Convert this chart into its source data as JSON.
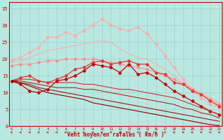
{
  "background_color": "#b8e8e0",
  "grid_color": "#99cccc",
  "xlabel": "Vent moyen/en rafales ( km/h )",
  "xlabel_color": "#cc0000",
  "tick_color": "#cc0000",
  "x_ticks": [
    0,
    1,
    2,
    3,
    4,
    5,
    6,
    7,
    8,
    9,
    10,
    11,
    12,
    13,
    14,
    15,
    16,
    17,
    18,
    19,
    20,
    21,
    22,
    23
  ],
  "ylim": [
    0,
    37
  ],
  "xlim": [
    -0.3,
    23.3
  ],
  "yticks": [
    0,
    5,
    10,
    15,
    20,
    25,
    30,
    35
  ],
  "series": [
    {
      "x": [
        0,
        1,
        2,
        3,
        4,
        5,
        6,
        7,
        8,
        9,
        10,
        11,
        12,
        13,
        14,
        15,
        16,
        17,
        18,
        19,
        20,
        21,
        22,
        23
      ],
      "y": [
        19.5,
        20.5,
        22.0,
        23.5,
        26.5,
        26.5,
        28.0,
        27.0,
        28.5,
        30.0,
        32.0,
        30.0,
        29.0,
        28.5,
        29.5,
        27.5,
        24.5,
        21.0,
        17.5,
        14.0,
        10.5,
        8.5,
        6.5,
        5.5
      ],
      "color": "#ffaaaa",
      "linewidth": 0.8,
      "marker": "D",
      "markersize": 2.0,
      "linestyle": "-"
    },
    {
      "x": [
        0,
        1,
        2,
        3,
        4,
        5,
        6,
        7,
        8,
        9,
        10,
        11,
        12,
        13,
        14,
        15,
        16,
        17,
        18,
        19,
        20,
        21,
        22,
        23
      ],
      "y": [
        19.0,
        19.5,
        20.5,
        21.5,
        22.5,
        23.0,
        23.5,
        24.0,
        24.5,
        25.0,
        25.5,
        25.0,
        23.0,
        21.5,
        20.5,
        20.0,
        18.5,
        17.0,
        15.0,
        13.0,
        11.5,
        10.0,
        8.5,
        7.0
      ],
      "color": "#ffaaaa",
      "linewidth": 0.7,
      "marker": null,
      "markersize": 0,
      "linestyle": "-"
    },
    {
      "x": [
        0,
        1,
        2,
        3,
        4,
        5,
        6,
        7,
        8,
        9,
        10,
        11,
        12,
        13,
        14,
        15,
        16,
        17,
        18,
        19,
        20,
        21,
        22,
        23
      ],
      "y": [
        18.0,
        18.5,
        18.5,
        19.0,
        19.5,
        19.5,
        20.0,
        20.0,
        20.0,
        20.0,
        19.5,
        19.0,
        18.5,
        18.0,
        17.5,
        17.0,
        16.0,
        15.0,
        14.0,
        12.5,
        11.0,
        9.5,
        8.0,
        6.5
      ],
      "color": "#ff8888",
      "linewidth": 0.7,
      "marker": "D",
      "markersize": 1.8,
      "linestyle": "-"
    },
    {
      "x": [
        0,
        1,
        2,
        3,
        4,
        5,
        6,
        7,
        8,
        9,
        10,
        11,
        12,
        13,
        14,
        15,
        16,
        17,
        18,
        19,
        20,
        21,
        22,
        23
      ],
      "y": [
        13.5,
        14.5,
        15.0,
        13.5,
        13.0,
        14.0,
        15.0,
        17.0,
        17.5,
        19.0,
        19.5,
        18.5,
        19.0,
        19.5,
        18.5,
        18.5,
        16.0,
        15.5,
        13.0,
        12.5,
        10.5,
        9.5,
        7.5,
        6.0
      ],
      "color": "#ee3333",
      "linewidth": 0.9,
      "marker": "D",
      "markersize": 2.0,
      "linestyle": "-"
    },
    {
      "x": [
        0,
        1,
        2,
        3,
        4,
        5,
        6,
        7,
        8,
        9,
        10,
        11,
        12,
        13,
        14,
        15,
        16,
        17,
        18,
        19,
        20,
        21,
        22,
        23
      ],
      "y": [
        13.5,
        12.5,
        10.5,
        10.0,
        11.0,
        13.5,
        14.0,
        15.0,
        16.5,
        18.5,
        18.0,
        17.5,
        16.0,
        18.5,
        15.5,
        16.0,
        14.5,
        12.5,
        10.5,
        9.0,
        7.5,
        6.0,
        4.5,
        3.5
      ],
      "color": "#cc0000",
      "linewidth": 0.9,
      "marker": "D",
      "markersize": 2.0,
      "linestyle": "-"
    },
    {
      "x": [
        0,
        1,
        2,
        3,
        4,
        5,
        6,
        7,
        8,
        9,
        10,
        11,
        12,
        13,
        14,
        15,
        16,
        17,
        18,
        19,
        20,
        21,
        22,
        23
      ],
      "y": [
        13.5,
        14.0,
        14.0,
        13.5,
        13.0,
        13.0,
        13.0,
        13.0,
        12.5,
        12.5,
        12.0,
        11.5,
        11.0,
        11.0,
        10.5,
        10.0,
        9.5,
        9.0,
        8.5,
        7.5,
        6.5,
        5.5,
        4.5,
        3.5
      ],
      "color": "#cc3333",
      "linewidth": 0.8,
      "marker": null,
      "markersize": 0,
      "linestyle": "-"
    },
    {
      "x": [
        0,
        1,
        2,
        3,
        4,
        5,
        6,
        7,
        8,
        9,
        10,
        11,
        12,
        13,
        14,
        15,
        16,
        17,
        18,
        19,
        20,
        21,
        22,
        23
      ],
      "y": [
        13.5,
        13.5,
        13.0,
        12.5,
        12.0,
        11.5,
        11.5,
        11.5,
        11.0,
        11.0,
        10.5,
        10.0,
        9.5,
        9.0,
        8.5,
        8.0,
        7.5,
        7.0,
        6.5,
        5.5,
        5.0,
        4.0,
        3.5,
        2.5
      ],
      "color": "#bb2222",
      "linewidth": 0.8,
      "marker": null,
      "markersize": 0,
      "linestyle": "-"
    },
    {
      "x": [
        0,
        1,
        2,
        3,
        4,
        5,
        6,
        7,
        8,
        9,
        10,
        11,
        12,
        13,
        14,
        15,
        16,
        17,
        18,
        19,
        20,
        21,
        22,
        23
      ],
      "y": [
        13.5,
        13.0,
        12.5,
        11.5,
        11.0,
        10.5,
        10.0,
        9.5,
        9.0,
        8.5,
        8.0,
        7.5,
        7.0,
        6.5,
        6.0,
        5.5,
        5.0,
        4.5,
        4.0,
        3.5,
        3.0,
        2.5,
        2.0,
        1.5
      ],
      "color": "#aa1111",
      "linewidth": 0.8,
      "marker": null,
      "markersize": 0,
      "linestyle": "-"
    },
    {
      "x": [
        0,
        1,
        2,
        3,
        4,
        5,
        6,
        7,
        8,
        9,
        10,
        11,
        12,
        13,
        14,
        15,
        16,
        17,
        18,
        19,
        20,
        21,
        22,
        23
      ],
      "y": [
        13.5,
        13.0,
        12.0,
        11.0,
        10.0,
        9.5,
        9.0,
        8.5,
        8.0,
        7.0,
        6.5,
        6.0,
        5.5,
        5.0,
        4.5,
        4.0,
        3.5,
        3.0,
        2.5,
        2.0,
        1.5,
        1.0,
        0.5,
        0.2
      ],
      "color": "#880000",
      "linewidth": 0.8,
      "marker": null,
      "markersize": 0,
      "linestyle": "-"
    }
  ],
  "arrow_color": "#cc0000"
}
